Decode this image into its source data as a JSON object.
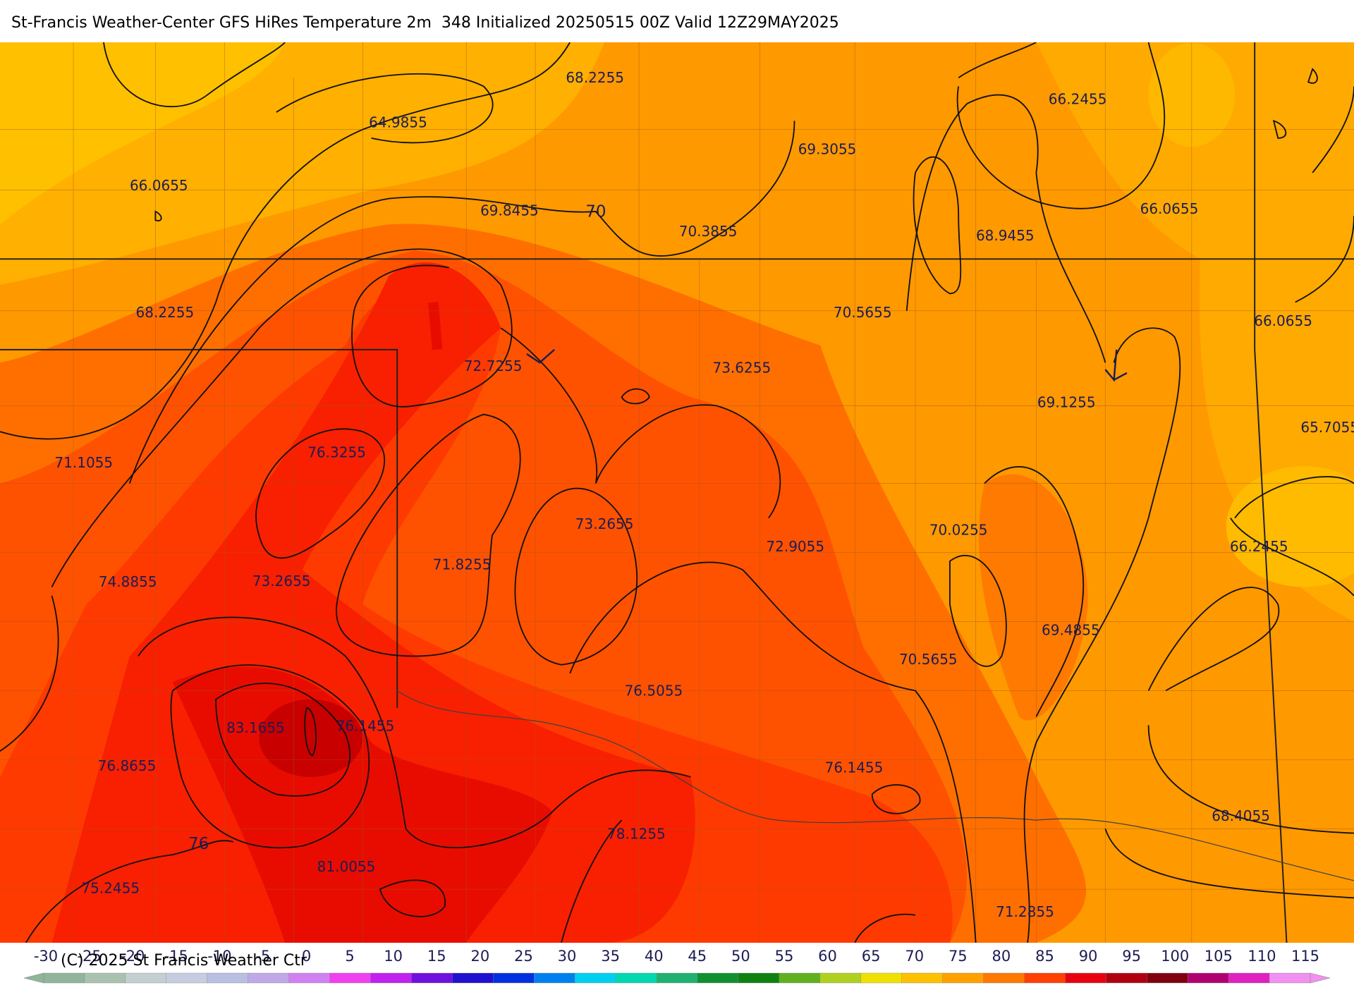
{
  "header": {
    "title": "St-Francis Weather-Center GFS HiRes Temperature 2m  348 Initialized 20250515 00Z Valid 12Z29MAY2025"
  },
  "contour_labels": [
    68.2255,
    64.9855,
    66.0655,
    69.8455,
    70,
    70.3855,
    69.3055,
    66.2455,
    66.0655,
    68.9455,
    68.2255,
    70.5655,
    66.0655,
    72.7255,
    73.6255,
    69.1255,
    65.7055,
    71.1055,
    76.3255,
    73.2655,
    72.9055,
    70.0255,
    66.2455,
    71.8255,
    74.8855,
    73.2655,
    69.4855,
    70.5655,
    76.5055,
    83.1655,
    76.1455,
    76.8655,
    76.1455,
    68.4055,
    76,
    78.1255,
    81.0055,
    75.2455,
    71.2855
  ],
  "colorbar": {
    "ticks": [
      -30,
      -25,
      -20,
      -15,
      -10,
      -5,
      0,
      5,
      10,
      15,
      20,
      25,
      30,
      35,
      40,
      45,
      50,
      55,
      60,
      65,
      70,
      75,
      80,
      85,
      90,
      95,
      100,
      105,
      110,
      115
    ],
    "colors": [
      "#8fb59a",
      "#a9c2b0",
      "#c3cfd0",
      "#c6cde0",
      "#b9bfe0",
      "#c0a8e8",
      "#d080f0",
      "#f040f0",
      "#c020f0",
      "#7010e0",
      "#2010d0",
      "#0030e0",
      "#0080f0",
      "#00d0f0",
      "#00d8b0",
      "#20b070",
      "#109030",
      "#108010",
      "#60b020",
      "#b0d020",
      "#f0e000",
      "#ffc000",
      "#ffa000",
      "#ff7800",
      "#ff4000",
      "#e80010",
      "#b00010",
      "#800010",
      "#b00070",
      "#e020c0",
      "#f090f0"
    ]
  },
  "footer": {
    "copyright": "(C) 2025 St Francis Weather Ctr"
  }
}
